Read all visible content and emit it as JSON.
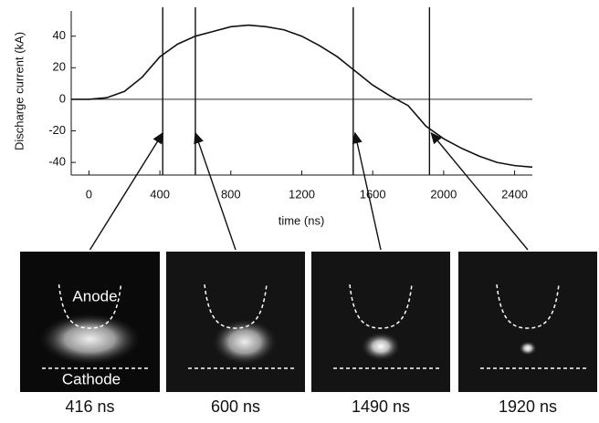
{
  "chart_data": {
    "type": "line",
    "y_label": "Discharge current (kA)",
    "x_label": "time (ns)",
    "x": [
      -100,
      0,
      100,
      200,
      300,
      400,
      500,
      600,
      700,
      800,
      900,
      1000,
      1100,
      1200,
      1300,
      1400,
      1500,
      1600,
      1700,
      1800,
      1900,
      2000,
      2100,
      2200,
      2300,
      2400,
      2500
    ],
    "series": [
      {
        "color": "#111111",
        "values": [
          0,
          0,
          1,
          5,
          14,
          27,
          35,
          40,
          43,
          46,
          47,
          46,
          44,
          40,
          34,
          27,
          18,
          9,
          2,
          -4,
          -17,
          -25,
          -31,
          -36,
          -40,
          -42,
          -43
        ]
      }
    ],
    "xlim": [
      -100,
      2500
    ],
    "xticks": [
      0,
      400,
      800,
      1200,
      1600,
      2000,
      2400
    ],
    "ylim": [
      -48,
      56
    ],
    "yticks": [
      -40,
      -20,
      0,
      20,
      40
    ],
    "markers": [
      416,
      600,
      1490,
      1920
    ],
    "panel_labels": [
      "416 ns",
      "600 ns",
      "1490 ns",
      "1920 ns"
    ],
    "anode_label": "Anode",
    "cathode_label": "Cathode"
  }
}
